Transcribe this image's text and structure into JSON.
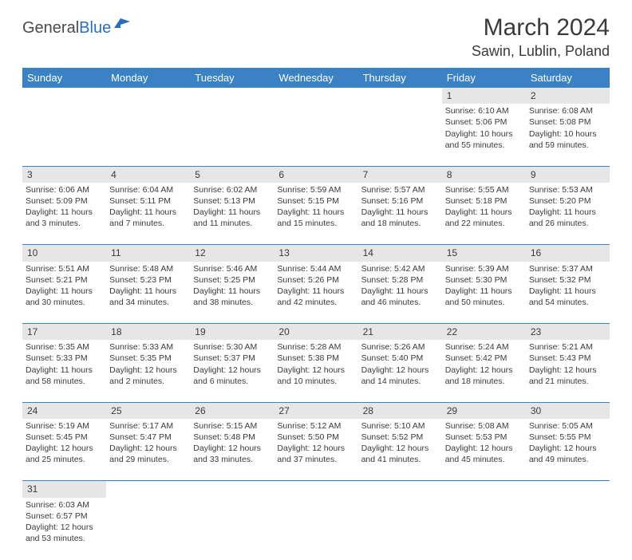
{
  "logo": {
    "part1": "General",
    "part2": "Blue"
  },
  "title": "March 2024",
  "location": "Sawin, Lublin, Poland",
  "colors": {
    "header_bg": "#3a82c4",
    "header_text": "#ffffff",
    "daynum_bg": "#e6e6e6",
    "border": "#3a82c4",
    "text": "#3a3a3a",
    "logo_accent": "#2a6db8"
  },
  "weekdays": [
    "Sunday",
    "Monday",
    "Tuesday",
    "Wednesday",
    "Thursday",
    "Friday",
    "Saturday"
  ],
  "weeks": [
    [
      null,
      null,
      null,
      null,
      null,
      {
        "day": "1",
        "sunrise": "Sunrise: 6:10 AM",
        "sunset": "Sunset: 5:06 PM",
        "daylight1": "Daylight: 10 hours",
        "daylight2": "and 55 minutes."
      },
      {
        "day": "2",
        "sunrise": "Sunrise: 6:08 AM",
        "sunset": "Sunset: 5:08 PM",
        "daylight1": "Daylight: 10 hours",
        "daylight2": "and 59 minutes."
      }
    ],
    [
      {
        "day": "3",
        "sunrise": "Sunrise: 6:06 AM",
        "sunset": "Sunset: 5:09 PM",
        "daylight1": "Daylight: 11 hours",
        "daylight2": "and 3 minutes."
      },
      {
        "day": "4",
        "sunrise": "Sunrise: 6:04 AM",
        "sunset": "Sunset: 5:11 PM",
        "daylight1": "Daylight: 11 hours",
        "daylight2": "and 7 minutes."
      },
      {
        "day": "5",
        "sunrise": "Sunrise: 6:02 AM",
        "sunset": "Sunset: 5:13 PM",
        "daylight1": "Daylight: 11 hours",
        "daylight2": "and 11 minutes."
      },
      {
        "day": "6",
        "sunrise": "Sunrise: 5:59 AM",
        "sunset": "Sunset: 5:15 PM",
        "daylight1": "Daylight: 11 hours",
        "daylight2": "and 15 minutes."
      },
      {
        "day": "7",
        "sunrise": "Sunrise: 5:57 AM",
        "sunset": "Sunset: 5:16 PM",
        "daylight1": "Daylight: 11 hours",
        "daylight2": "and 18 minutes."
      },
      {
        "day": "8",
        "sunrise": "Sunrise: 5:55 AM",
        "sunset": "Sunset: 5:18 PM",
        "daylight1": "Daylight: 11 hours",
        "daylight2": "and 22 minutes."
      },
      {
        "day": "9",
        "sunrise": "Sunrise: 5:53 AM",
        "sunset": "Sunset: 5:20 PM",
        "daylight1": "Daylight: 11 hours",
        "daylight2": "and 26 minutes."
      }
    ],
    [
      {
        "day": "10",
        "sunrise": "Sunrise: 5:51 AM",
        "sunset": "Sunset: 5:21 PM",
        "daylight1": "Daylight: 11 hours",
        "daylight2": "and 30 minutes."
      },
      {
        "day": "11",
        "sunrise": "Sunrise: 5:48 AM",
        "sunset": "Sunset: 5:23 PM",
        "daylight1": "Daylight: 11 hours",
        "daylight2": "and 34 minutes."
      },
      {
        "day": "12",
        "sunrise": "Sunrise: 5:46 AM",
        "sunset": "Sunset: 5:25 PM",
        "daylight1": "Daylight: 11 hours",
        "daylight2": "and 38 minutes."
      },
      {
        "day": "13",
        "sunrise": "Sunrise: 5:44 AM",
        "sunset": "Sunset: 5:26 PM",
        "daylight1": "Daylight: 11 hours",
        "daylight2": "and 42 minutes."
      },
      {
        "day": "14",
        "sunrise": "Sunrise: 5:42 AM",
        "sunset": "Sunset: 5:28 PM",
        "daylight1": "Daylight: 11 hours",
        "daylight2": "and 46 minutes."
      },
      {
        "day": "15",
        "sunrise": "Sunrise: 5:39 AM",
        "sunset": "Sunset: 5:30 PM",
        "daylight1": "Daylight: 11 hours",
        "daylight2": "and 50 minutes."
      },
      {
        "day": "16",
        "sunrise": "Sunrise: 5:37 AM",
        "sunset": "Sunset: 5:32 PM",
        "daylight1": "Daylight: 11 hours",
        "daylight2": "and 54 minutes."
      }
    ],
    [
      {
        "day": "17",
        "sunrise": "Sunrise: 5:35 AM",
        "sunset": "Sunset: 5:33 PM",
        "daylight1": "Daylight: 11 hours",
        "daylight2": "and 58 minutes."
      },
      {
        "day": "18",
        "sunrise": "Sunrise: 5:33 AM",
        "sunset": "Sunset: 5:35 PM",
        "daylight1": "Daylight: 12 hours",
        "daylight2": "and 2 minutes."
      },
      {
        "day": "19",
        "sunrise": "Sunrise: 5:30 AM",
        "sunset": "Sunset: 5:37 PM",
        "daylight1": "Daylight: 12 hours",
        "daylight2": "and 6 minutes."
      },
      {
        "day": "20",
        "sunrise": "Sunrise: 5:28 AM",
        "sunset": "Sunset: 5:38 PM",
        "daylight1": "Daylight: 12 hours",
        "daylight2": "and 10 minutes."
      },
      {
        "day": "21",
        "sunrise": "Sunrise: 5:26 AM",
        "sunset": "Sunset: 5:40 PM",
        "daylight1": "Daylight: 12 hours",
        "daylight2": "and 14 minutes."
      },
      {
        "day": "22",
        "sunrise": "Sunrise: 5:24 AM",
        "sunset": "Sunset: 5:42 PM",
        "daylight1": "Daylight: 12 hours",
        "daylight2": "and 18 minutes."
      },
      {
        "day": "23",
        "sunrise": "Sunrise: 5:21 AM",
        "sunset": "Sunset: 5:43 PM",
        "daylight1": "Daylight: 12 hours",
        "daylight2": "and 21 minutes."
      }
    ],
    [
      {
        "day": "24",
        "sunrise": "Sunrise: 5:19 AM",
        "sunset": "Sunset: 5:45 PM",
        "daylight1": "Daylight: 12 hours",
        "daylight2": "and 25 minutes."
      },
      {
        "day": "25",
        "sunrise": "Sunrise: 5:17 AM",
        "sunset": "Sunset: 5:47 PM",
        "daylight1": "Daylight: 12 hours",
        "daylight2": "and 29 minutes."
      },
      {
        "day": "26",
        "sunrise": "Sunrise: 5:15 AM",
        "sunset": "Sunset: 5:48 PM",
        "daylight1": "Daylight: 12 hours",
        "daylight2": "and 33 minutes."
      },
      {
        "day": "27",
        "sunrise": "Sunrise: 5:12 AM",
        "sunset": "Sunset: 5:50 PM",
        "daylight1": "Daylight: 12 hours",
        "daylight2": "and 37 minutes."
      },
      {
        "day": "28",
        "sunrise": "Sunrise: 5:10 AM",
        "sunset": "Sunset: 5:52 PM",
        "daylight1": "Daylight: 12 hours",
        "daylight2": "and 41 minutes."
      },
      {
        "day": "29",
        "sunrise": "Sunrise: 5:08 AM",
        "sunset": "Sunset: 5:53 PM",
        "daylight1": "Daylight: 12 hours",
        "daylight2": "and 45 minutes."
      },
      {
        "day": "30",
        "sunrise": "Sunrise: 5:05 AM",
        "sunset": "Sunset: 5:55 PM",
        "daylight1": "Daylight: 12 hours",
        "daylight2": "and 49 minutes."
      }
    ],
    [
      {
        "day": "31",
        "sunrise": "Sunrise: 6:03 AM",
        "sunset": "Sunset: 6:57 PM",
        "daylight1": "Daylight: 12 hours",
        "daylight2": "and 53 minutes."
      },
      null,
      null,
      null,
      null,
      null,
      null
    ]
  ]
}
